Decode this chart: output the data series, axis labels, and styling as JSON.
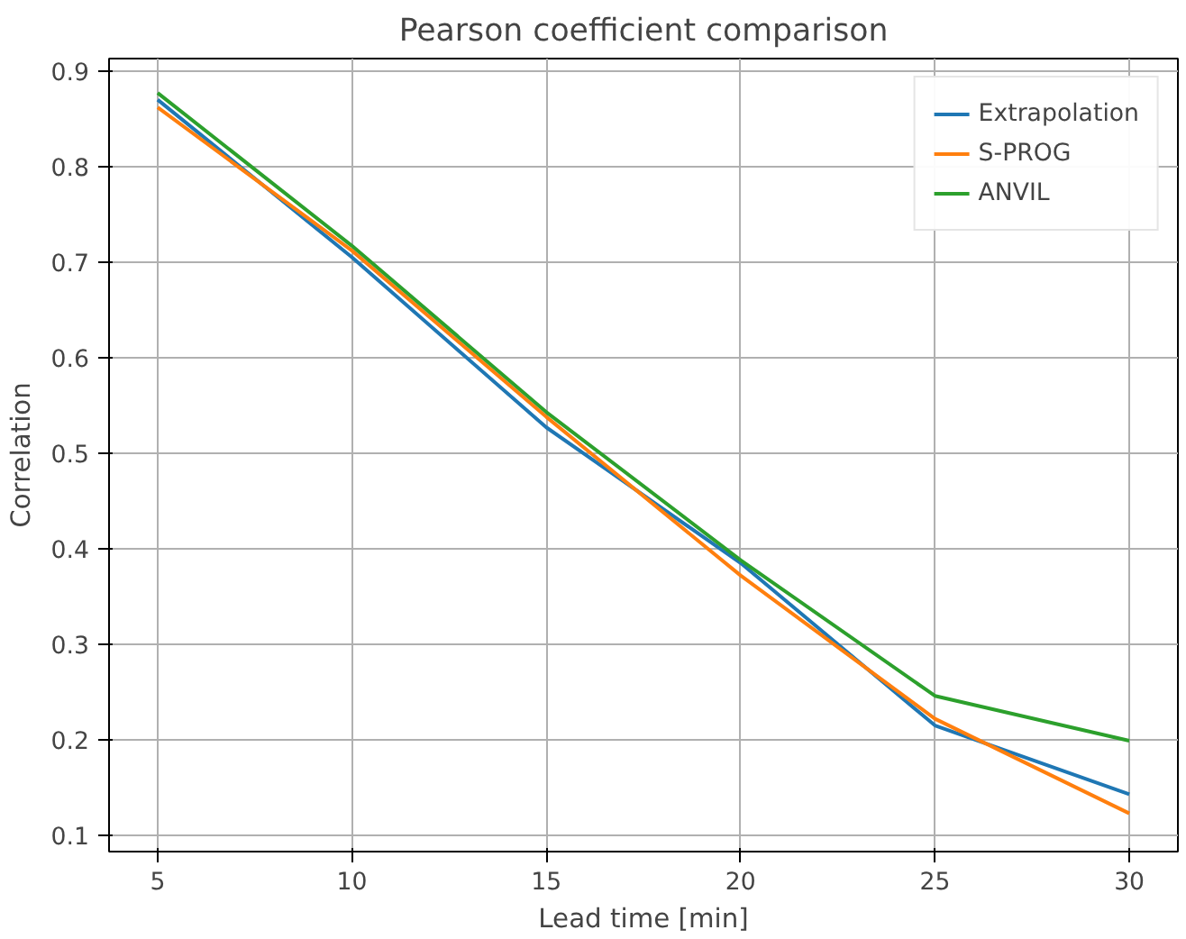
{
  "chart_data": {
    "type": "line",
    "title": "Pearson coefficient comparison",
    "xlabel": "Lead time [min]",
    "ylabel": "Correlation",
    "x": [
      5,
      10,
      15,
      20,
      25,
      30
    ],
    "series": [
      {
        "name": "Extrapolation",
        "color": "#1f77b4",
        "values": [
          0.87,
          0.705,
          0.527,
          0.385,
          0.215,
          0.143
        ]
      },
      {
        "name": "S-PROG",
        "color": "#ff7f0e",
        "values": [
          0.862,
          0.712,
          0.538,
          0.372,
          0.222,
          0.123
        ]
      },
      {
        "name": "ANVIL",
        "color": "#2ca02c",
        "values": [
          0.877,
          0.717,
          0.543,
          0.388,
          0.246,
          0.199
        ]
      }
    ],
    "xlim": [
      3.75,
      31.25
    ],
    "ylim": [
      0.083,
      0.913
    ],
    "xticks": [
      5,
      10,
      15,
      20,
      25,
      30
    ],
    "yticks": [
      0.1,
      0.2,
      0.3,
      0.4,
      0.5,
      0.6,
      0.7,
      0.8,
      0.9
    ],
    "grid": true,
    "legend": "top right"
  }
}
